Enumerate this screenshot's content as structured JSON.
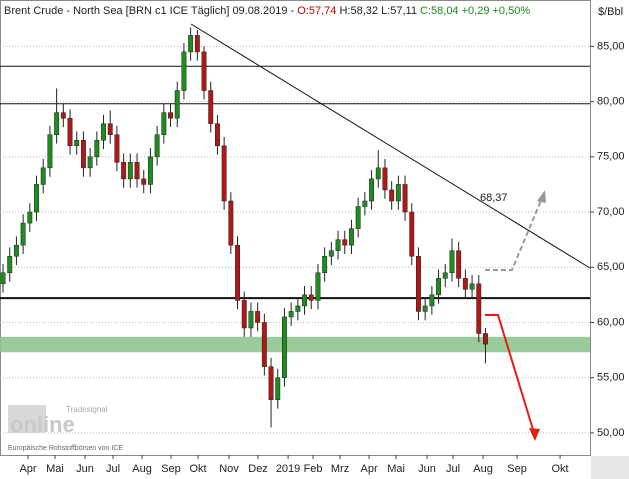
{
  "chart_data": {
    "type": "candlestick",
    "header": [
      {
        "text": "Brent Crude - North Sea [BRN c1 ICE  Täglich] 09.08.2019 - ",
        "color": "#222222"
      },
      {
        "text": "O:57,74",
        "color": "#c00000"
      },
      {
        "text": " H:58,32",
        "color": "#222222"
      },
      {
        "text": " L:57,11",
        "color": "#222222"
      },
      {
        "text": " C:58,04 +0,29 +0,50%",
        "color": "#1a8a1a"
      }
    ],
    "unit": "$/Bbl",
    "watermark": "Tradesignal",
    "watermark_big": "online",
    "source": "Europäische Rohstoffbörsen von ICE",
    "annotation": {
      "text": "68,37"
    },
    "up_color": "#1e8c1e",
    "down_color": "#b01818",
    "open": [
      63.5,
      64.5,
      66,
      67,
      69,
      70,
      72.5,
      74,
      77,
      79,
      78.5,
      76,
      76.5,
      74,
      75,
      76.5,
      78,
      77,
      74.5,
      73,
      74.5,
      73,
      72.5,
      75,
      77,
      79,
      78.5,
      81,
      84.5,
      86,
      84.5,
      81,
      78,
      76,
      71,
      67,
      62,
      59.5,
      61,
      60,
      56,
      53,
      55,
      60.5,
      61,
      61.5,
      62.5,
      62,
      64.5,
      66,
      66.5,
      67.5,
      67,
      68.5,
      70.5,
      71,
      73,
      74,
      72,
      71,
      72.5,
      70,
      66,
      61,
      61.5,
      62.5,
      64,
      64.5,
      66.5,
      64,
      63,
      63.5,
      59
    ],
    "high": [
      65.3,
      66.8,
      67.8,
      69.8,
      70.8,
      73.3,
      74.8,
      77.8,
      81.2,
      79.8,
      79.3,
      77.3,
      77.3,
      75.8,
      77.3,
      78.8,
      79.2,
      77.8,
      75.3,
      75.3,
      75.3,
      73.8,
      75.8,
      77.8,
      79.8,
      79.8,
      81.8,
      85.3,
      86.7,
      86.5,
      85,
      81.8,
      78.8,
      76.8,
      71.8,
      67.8,
      62.8,
      61.8,
      61.8,
      60.8,
      56.8,
      55.8,
      61.3,
      61.8,
      62.3,
      63.3,
      63.3,
      65.3,
      66.8,
      67.3,
      68.3,
      68.3,
      69.3,
      71.3,
      71.8,
      73.8,
      75.6,
      74.8,
      72.8,
      73.3,
      73.3,
      70.8,
      66.8,
      62.3,
      63.3,
      64.8,
      65.3,
      67.6,
      67.3,
      64.8,
      64.3,
      64.3,
      59.5
    ],
    "low": [
      62.7,
      63.7,
      65.2,
      66.2,
      68.2,
      69.2,
      71.7,
      73.2,
      76.2,
      77.7,
      75.2,
      75.2,
      73.2,
      73.2,
      74.2,
      75.7,
      76.2,
      73.7,
      72.2,
      72.2,
      72.2,
      71.7,
      71.7,
      74.2,
      76.2,
      77.7,
      77.7,
      80.2,
      83.7,
      83.7,
      80.2,
      77.2,
      75.2,
      70.2,
      66.2,
      61.2,
      58.7,
      58.7,
      59.2,
      55.2,
      50.5,
      52.2,
      54.2,
      59.7,
      60.2,
      60.7,
      61.2,
      61.2,
      63.7,
      65.2,
      65.7,
      66.2,
      66.2,
      67.7,
      69.7,
      70.2,
      72.2,
      71.2,
      70.2,
      70.2,
      69.2,
      65.2,
      60.2,
      60.2,
      60.7,
      61.7,
      63.2,
      63.7,
      63.2,
      62.2,
      62.2,
      58.2,
      56.3
    ],
    "close": [
      64.5,
      66,
      67,
      69,
      70,
      72.5,
      74,
      77,
      79,
      78.5,
      76,
      76.5,
      74,
      75,
      76.5,
      78,
      77,
      74.5,
      73,
      74.5,
      73,
      72.5,
      75,
      77,
      79,
      78.5,
      81,
      84.5,
      86,
      84.5,
      81,
      78,
      76,
      71,
      67,
      62,
      59.5,
      61,
      60,
      56,
      53,
      55,
      60.5,
      61,
      61.5,
      62.5,
      62,
      64.5,
      66,
      66.5,
      67.5,
      67,
      68.5,
      70.5,
      71,
      73,
      74,
      72,
      71,
      72.5,
      70,
      66,
      61,
      61.5,
      62.5,
      64,
      64.5,
      66.5,
      64,
      63,
      63.5,
      59,
      58.04
    ],
    "hlines": [
      83.2,
      79.8,
      62.2
    ],
    "zone": [
      57.3,
      58.7
    ],
    "xlim": [
      -0.45,
      87.6
    ],
    "ylim": [
      48.0,
      89.2
    ],
    "xticks": [
      {
        "value": 3.73,
        "label": "Apr"
      },
      {
        "value": 7.76,
        "label": "Mai"
      },
      {
        "value": 12.24,
        "label": "Jun"
      },
      {
        "value": 16.42,
        "label": "Jul"
      },
      {
        "value": 20.75,
        "label": "Aug"
      },
      {
        "value": 25.07,
        "label": "Sep"
      },
      {
        "value": 29.1,
        "label": "Okt"
      },
      {
        "value": 33.73,
        "label": "Nov"
      },
      {
        "value": 38.06,
        "label": "Dez"
      },
      {
        "value": 42.54,
        "label": "2019"
      },
      {
        "value": 46.27,
        "label": "Feb"
      },
      {
        "value": 50.3,
        "label": "Mrz"
      },
      {
        "value": 54.63,
        "label": "Apr"
      },
      {
        "value": 58.66,
        "label": "Mai"
      },
      {
        "value": 63.28,
        "label": "Jun"
      },
      {
        "value": 67.16,
        "label": "Jul"
      },
      {
        "value": 71.64,
        "label": "Aug"
      },
      {
        "value": 76.72,
        "label": "Sep"
      },
      {
        "value": 83.13,
        "label": "Okt"
      }
    ],
    "yticks": [
      {
        "value": 50,
        "label": "50,00"
      },
      {
        "value": 55,
        "label": "55,00"
      },
      {
        "value": 60,
        "label": "60,00"
      },
      {
        "value": 65,
        "label": "65,00"
      },
      {
        "value": 70,
        "label": "70,00"
      },
      {
        "value": 75,
        "label": "75,00"
      },
      {
        "value": 80,
        "label": "80,00"
      },
      {
        "value": 85,
        "label": "85,00"
      }
    ],
    "grid": true
  }
}
